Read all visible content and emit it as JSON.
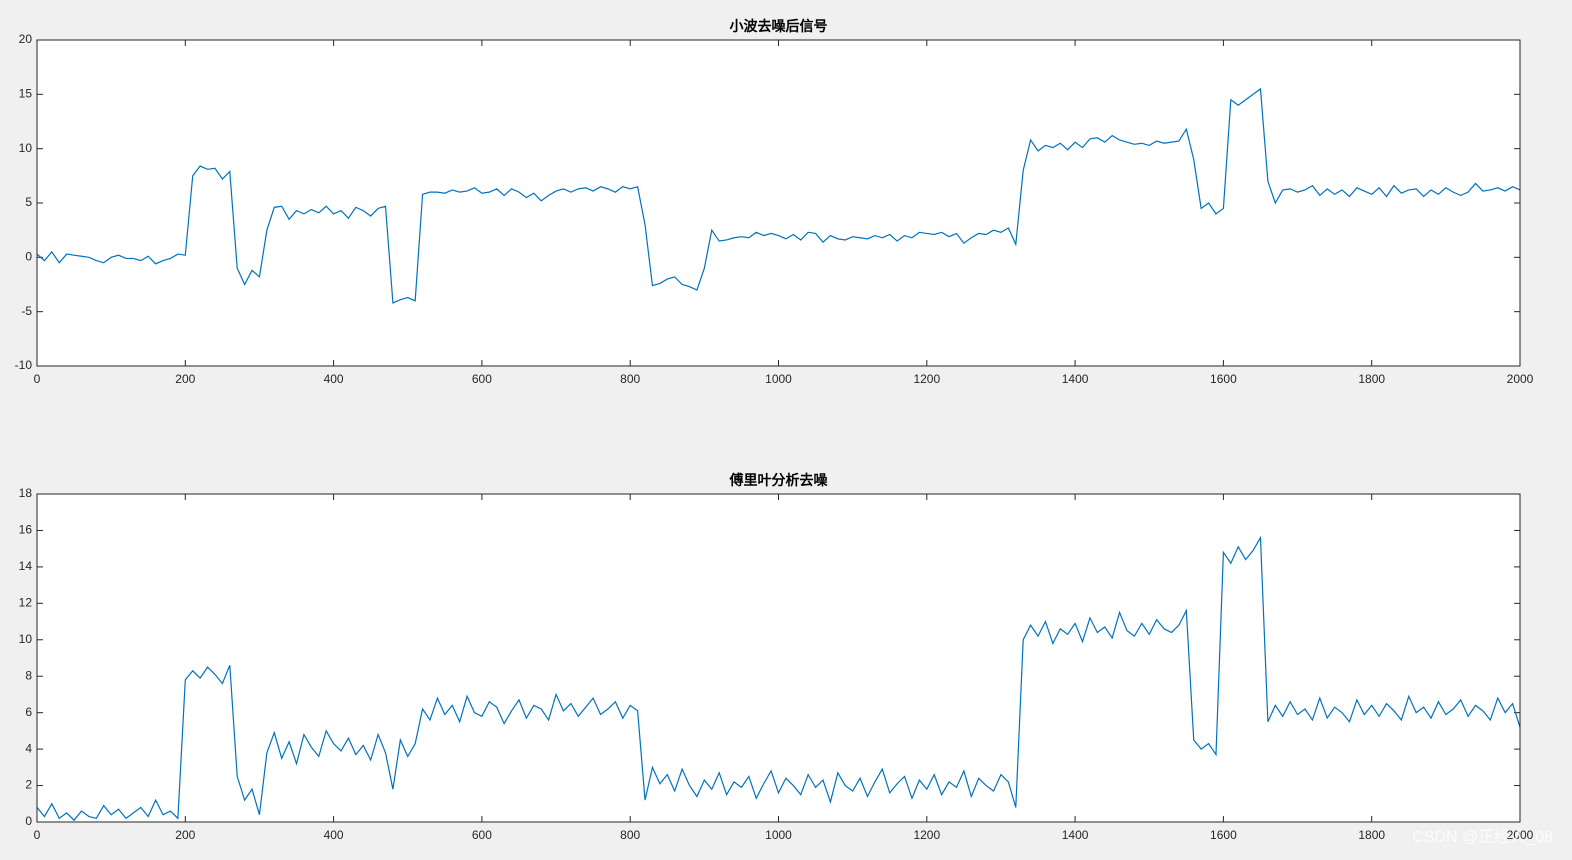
{
  "chart_data": [
    {
      "type": "line",
      "title": "小波去噪后信号",
      "color": "#0072bd",
      "xlim": [
        0,
        2000
      ],
      "xticks": [
        0,
        200,
        400,
        600,
        800,
        1000,
        1200,
        1400,
        1600,
        1800,
        2000
      ],
      "ylim": [
        -10,
        20
      ],
      "yticks": [
        -10,
        -5,
        0,
        5,
        10,
        15,
        20
      ],
      "x": [
        0,
        10,
        20,
        30,
        40,
        50,
        60,
        70,
        80,
        90,
        100,
        110,
        120,
        130,
        140,
        150,
        160,
        170,
        180,
        190,
        200,
        210,
        220,
        230,
        240,
        250,
        260,
        270,
        280,
        290,
        300,
        310,
        320,
        330,
        340,
        350,
        360,
        370,
        380,
        390,
        400,
        410,
        420,
        430,
        440,
        450,
        460,
        470,
        480,
        490,
        500,
        510,
        520,
        530,
        540,
        550,
        560,
        570,
        580,
        590,
        600,
        610,
        620,
        630,
        640,
        650,
        660,
        670,
        680,
        690,
        700,
        710,
        720,
        730,
        740,
        750,
        760,
        770,
        780,
        790,
        800,
        810,
        820,
        830,
        840,
        850,
        860,
        870,
        880,
        890,
        900,
        910,
        920,
        930,
        940,
        950,
        960,
        970,
        980,
        990,
        1000,
        1010,
        1020,
        1030,
        1040,
        1050,
        1060,
        1070,
        1080,
        1090,
        1100,
        1110,
        1120,
        1130,
        1140,
        1150,
        1160,
        1170,
        1180,
        1190,
        1200,
        1210,
        1220,
        1230,
        1240,
        1250,
        1260,
        1270,
        1280,
        1290,
        1300,
        1310,
        1320,
        1330,
        1340,
        1350,
        1360,
        1370,
        1380,
        1390,
        1400,
        1410,
        1420,
        1430,
        1440,
        1450,
        1460,
        1470,
        1480,
        1490,
        1500,
        1510,
        1520,
        1530,
        1540,
        1550,
        1560,
        1570,
        1580,
        1590,
        1600,
        1610,
        1620,
        1630,
        1640,
        1650,
        1660,
        1670,
        1680,
        1690,
        1700,
        1710,
        1720,
        1730,
        1740,
        1750,
        1760,
        1770,
        1780,
        1790,
        1800,
        1810,
        1820,
        1830,
        1840,
        1850,
        1860,
        1870,
        1880,
        1890,
        1900,
        1910,
        1920,
        1930,
        1940,
        1950,
        1960,
        1970,
        1980,
        1990,
        2000
      ],
      "values": [
        0.3,
        -0.3,
        0.5,
        -0.5,
        0.3,
        0.2,
        0.1,
        0,
        -0.3,
        -0.5,
        0,
        0.2,
        -0.1,
        -0.1,
        -0.3,
        0.1,
        -0.6,
        -0.3,
        -0.1,
        0.3,
        0.2,
        7.5,
        8.4,
        8.1,
        8.2,
        7.2,
        7.9,
        -1,
        -2.5,
        -1.2,
        -1.8,
        2.5,
        4.6,
        4.7,
        3.5,
        4.3,
        4,
        4.4,
        4.1,
        4.7,
        4,
        4.3,
        3.6,
        4.6,
        4.3,
        3.8,
        4.5,
        4.7,
        -4.2,
        -3.9,
        -3.7,
        -4,
        5.8,
        6,
        6,
        5.9,
        6.2,
        6,
        6.1,
        6.4,
        5.9,
        6,
        6.3,
        5.7,
        6.3,
        6,
        5.5,
        5.9,
        5.2,
        5.7,
        6.1,
        6.3,
        6,
        6.3,
        6.4,
        6.1,
        6.5,
        6.3,
        6,
        6.5,
        6.3,
        6.5,
        3,
        -2.6,
        -2.4,
        -2,
        -1.8,
        -2.5,
        -2.7,
        -3,
        -1,
        2.5,
        1.5,
        1.6,
        1.8,
        1.9,
        1.8,
        2.3,
        2,
        2.2,
        2,
        1.7,
        2.1,
        1.6,
        2.3,
        2.2,
        1.4,
        2,
        1.7,
        1.6,
        1.9,
        1.8,
        1.7,
        2,
        1.8,
        2.1,
        1.5,
        2,
        1.8,
        2.3,
        2.2,
        2.1,
        2.3,
        1.9,
        2.2,
        1.3,
        1.8,
        2.2,
        2.1,
        2.5,
        2.3,
        2.7,
        1.2,
        8,
        10.8,
        9.8,
        10.3,
        10.1,
        10.5,
        9.9,
        10.6,
        10.1,
        10.9,
        11,
        10.6,
        11.2,
        10.8,
        10.6,
        10.4,
        10.5,
        10.3,
        10.7,
        10.5,
        10.6,
        10.7,
        11.8,
        9,
        4.5,
        5,
        4,
        4.5,
        14.5,
        14,
        14.5,
        15,
        15.5,
        7,
        5,
        6.2,
        6.3,
        6,
        6.2,
        6.6,
        5.7,
        6.3,
        5.8,
        6.2,
        5.6,
        6.4,
        6.1,
        5.8,
        6.4,
        5.6,
        6.6,
        5.9,
        6.2,
        6.3,
        5.6,
        6.2,
        5.8,
        6.4,
        6,
        5.7,
        6,
        6.8,
        6.1,
        6.2,
        6.4,
        6.1,
        6.5,
        6.2
      ]
    },
    {
      "type": "line",
      "title": "傅里叶分析去噪",
      "color": "#0072bd",
      "xlim": [
        0,
        2000
      ],
      "xticks": [
        0,
        200,
        400,
        600,
        800,
        1000,
        1200,
        1400,
        1600,
        1800,
        2000
      ],
      "ylim": [
        0,
        18
      ],
      "yticks": [
        0,
        2,
        4,
        6,
        8,
        10,
        12,
        14,
        16,
        18
      ],
      "x": [
        0,
        10,
        20,
        30,
        40,
        50,
        60,
        70,
        80,
        90,
        100,
        110,
        120,
        130,
        140,
        150,
        160,
        170,
        180,
        190,
        200,
        210,
        220,
        230,
        240,
        250,
        260,
        270,
        280,
        290,
        300,
        310,
        320,
        330,
        340,
        350,
        360,
        370,
        380,
        390,
        400,
        410,
        420,
        430,
        440,
        450,
        460,
        470,
        480,
        490,
        500,
        510,
        520,
        530,
        540,
        550,
        560,
        570,
        580,
        590,
        600,
        610,
        620,
        630,
        640,
        650,
        660,
        670,
        680,
        690,
        700,
        710,
        720,
        730,
        740,
        750,
        760,
        770,
        780,
        790,
        800,
        810,
        820,
        830,
        840,
        850,
        860,
        870,
        880,
        890,
        900,
        910,
        920,
        930,
        940,
        950,
        960,
        970,
        980,
        990,
        1000,
        1010,
        1020,
        1030,
        1040,
        1050,
        1060,
        1070,
        1080,
        1090,
        1100,
        1110,
        1120,
        1130,
        1140,
        1150,
        1160,
        1170,
        1180,
        1190,
        1200,
        1210,
        1220,
        1230,
        1240,
        1250,
        1260,
        1270,
        1280,
        1290,
        1300,
        1310,
        1320,
        1330,
        1340,
        1350,
        1360,
        1370,
        1380,
        1390,
        1400,
        1410,
        1420,
        1430,
        1440,
        1450,
        1460,
        1470,
        1480,
        1490,
        1500,
        1510,
        1520,
        1530,
        1540,
        1550,
        1560,
        1570,
        1580,
        1590,
        1600,
        1610,
        1620,
        1630,
        1640,
        1650,
        1660,
        1670,
        1680,
        1690,
        1700,
        1710,
        1720,
        1730,
        1740,
        1750,
        1760,
        1770,
        1780,
        1790,
        1800,
        1810,
        1820,
        1830,
        1840,
        1850,
        1860,
        1870,
        1880,
        1890,
        1900,
        1910,
        1920,
        1930,
        1940,
        1950,
        1960,
        1970,
        1980,
        1990,
        2000
      ],
      "values": [
        0.8,
        0.3,
        1.0,
        0.2,
        0.5,
        0.1,
        0.6,
        0.3,
        0.2,
        0.9,
        0.4,
        0.7,
        0.2,
        0.5,
        0.8,
        0.3,
        1.2,
        0.4,
        0.6,
        0.2,
        7.8,
        8.3,
        7.9,
        8.5,
        8.1,
        7.6,
        8.6,
        2.5,
        1.2,
        1.8,
        0.4,
        3.8,
        4.9,
        3.5,
        4.4,
        3.2,
        4.8,
        4.1,
        3.6,
        5.0,
        4.3,
        3.9,
        4.6,
        3.7,
        4.2,
        3.4,
        4.8,
        3.8,
        1.8,
        4.5,
        3.6,
        4.3,
        6.2,
        5.6,
        6.8,
        5.9,
        6.4,
        5.5,
        6.9,
        6.0,
        5.8,
        6.6,
        6.3,
        5.4,
        6.1,
        6.7,
        5.7,
        6.4,
        6.2,
        5.6,
        7.0,
        6.1,
        6.5,
        5.8,
        6.3,
        6.8,
        5.9,
        6.2,
        6.6,
        5.7,
        6.4,
        6.1,
        1.2,
        3.0,
        2.1,
        2.6,
        1.7,
        2.9,
        2.0,
        1.4,
        2.3,
        1.8,
        2.7,
        1.5,
        2.2,
        1.9,
        2.5,
        1.3,
        2.1,
        2.8,
        1.6,
        2.4,
        2.0,
        1.5,
        2.6,
        1.9,
        2.3,
        1.1,
        2.7,
        2.0,
        1.7,
        2.4,
        1.4,
        2.2,
        2.9,
        1.6,
        2.1,
        2.5,
        1.3,
        2.3,
        1.8,
        2.6,
        1.5,
        2.2,
        1.9,
        2.8,
        1.4,
        2.4,
        2.0,
        1.7,
        2.6,
        2.2,
        0.8,
        10.0,
        10.8,
        10.2,
        11.0,
        9.8,
        10.6,
        10.3,
        10.9,
        9.9,
        11.2,
        10.4,
        10.7,
        10.1,
        11.5,
        10.5,
        10.2,
        10.9,
        10.3,
        11.1,
        10.6,
        10.4,
        10.8,
        11.6,
        4.5,
        4.0,
        4.3,
        3.7,
        14.8,
        14.2,
        15.1,
        14.4,
        14.9,
        15.6,
        5.5,
        6.4,
        5.8,
        6.6,
        5.9,
        6.2,
        5.6,
        6.8,
        5.7,
        6.3,
        6.0,
        5.5,
        6.7,
        5.9,
        6.4,
        5.8,
        6.5,
        6.1,
        5.6,
        6.9,
        6.0,
        6.3,
        5.7,
        6.6,
        5.9,
        6.2,
        6.7,
        5.8,
        6.4,
        6.1,
        5.6,
        6.8,
        6.0,
        6.5,
        5.2
      ]
    }
  ],
  "watermark": "CSDN @正经人_08"
}
